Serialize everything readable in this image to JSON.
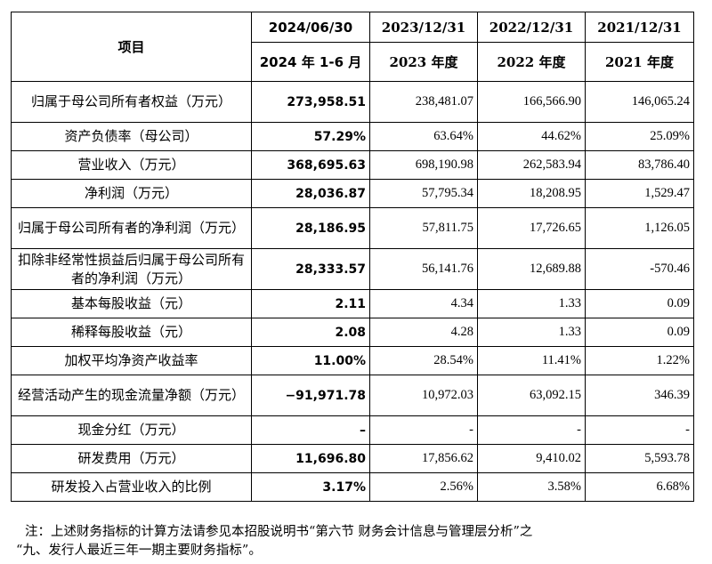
{
  "table": {
    "header": {
      "item": "项目",
      "current_date": "2024/06/30",
      "current_period": "2024 年 1-6 月",
      "cols": [
        {
          "date": "2023/12/31",
          "period": "2023 年度"
        },
        {
          "date": "2022/12/31",
          "period": "2022 年度"
        },
        {
          "date": "2021/12/31",
          "period": "2021 年度"
        }
      ]
    },
    "rows": [
      {
        "label": "归属于母公司所有者权益（万元）",
        "cur": "273,958.51",
        "v": [
          "238,481.07",
          "166,566.90",
          "146,065.24"
        ]
      },
      {
        "label": "资产负债率（母公司）",
        "cur": "57.29%",
        "v": [
          "63.64%",
          "44.62%",
          "25.09%"
        ]
      },
      {
        "label": "营业收入（万元）",
        "cur": "368,695.63",
        "v": [
          "698,190.98",
          "262,583.94",
          "83,786.40"
        ]
      },
      {
        "label": "净利润（万元）",
        "cur": "28,036.87",
        "v": [
          "57,795.34",
          "18,208.95",
          "1,529.47"
        ]
      },
      {
        "label": "归属于母公司所有者的净利润（万元）",
        "cur": "28,186.95",
        "v": [
          "57,811.75",
          "17,726.65",
          "1,126.05"
        ]
      },
      {
        "label": "扣除非经常性损益后归属于母公司所有者的净利润（万元）",
        "cur": "28,333.57",
        "v": [
          "56,141.76",
          "12,689.88",
          "-570.46"
        ]
      },
      {
        "label": "基本每股收益（元）",
        "cur": "2.11",
        "v": [
          "4.34",
          "1.33",
          "0.09"
        ]
      },
      {
        "label": "稀释每股收益（元）",
        "cur": "2.08",
        "v": [
          "4.28",
          "1.33",
          "0.09"
        ]
      },
      {
        "label": "加权平均净资产收益率",
        "cur": "11.00%",
        "v": [
          "28.54%",
          "11.41%",
          "1.22%"
        ]
      },
      {
        "label": "经营活动产生的现金流量净额（万元）",
        "cur": "−91,971.78",
        "v": [
          "10,972.03",
          "63,092.15",
          "346.39"
        ]
      },
      {
        "label": "现金分红（万元）",
        "cur": "–",
        "v": [
          "-",
          "-",
          "-"
        ]
      },
      {
        "label": "研发费用（万元）",
        "cur": "11,696.80",
        "v": [
          "17,856.62",
          "9,410.02",
          "5,593.78"
        ]
      },
      {
        "label": "研发投入占营业收入的比例",
        "cur": "3.17%",
        "v": [
          "2.56%",
          "3.58%",
          "6.68%"
        ]
      }
    ]
  },
  "note": {
    "line1": "注：上述财务指标的计算方法请参见本招股说明书“第六节 财务会计信息与管理层分析”之",
    "line2": "“九、发行人最近三年一期主要财务指标”。"
  }
}
